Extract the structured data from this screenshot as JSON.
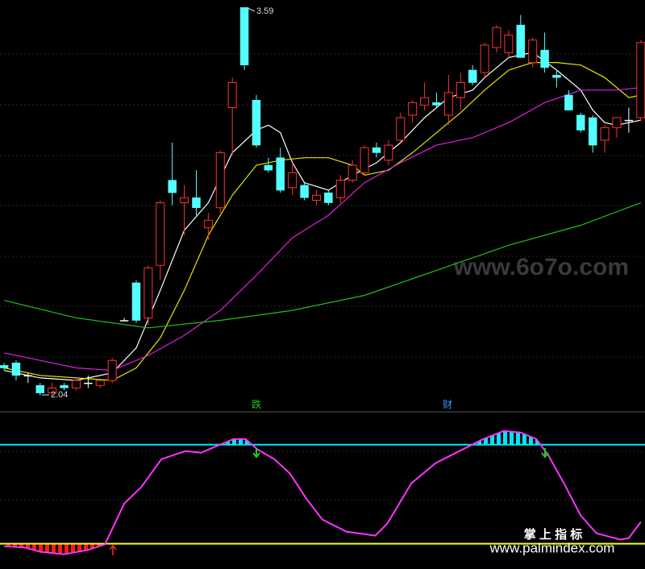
{
  "chart_data": [
    {
      "type": "candlestick",
      "xlim": [
        -0.34,
        53.35
      ],
      "ylim": [
        2.01,
        3.62
      ],
      "up_color": "#ff3232",
      "down_color": "#54ffff",
      "flat_color": "#ffffff",
      "candles": [
        [
          2.16,
          2.17,
          2.14,
          2.15
        ],
        [
          2.17,
          2.18,
          2.1,
          2.12
        ],
        [
          2.12,
          2.13,
          2.09,
          2.12
        ],
        [
          2.08,
          2.09,
          2.04,
          2.05
        ],
        [
          2.05,
          2.09,
          2.04,
          2.07
        ],
        [
          2.08,
          2.09,
          2.06,
          2.07
        ],
        [
          2.07,
          2.11,
          2.06,
          2.1
        ],
        [
          2.09,
          2.12,
          2.07,
          2.09
        ],
        [
          2.08,
          2.1,
          2.07,
          2.1
        ],
        [
          2.1,
          2.19,
          2.09,
          2.18
        ],
        [
          2.34,
          2.35,
          2.34,
          2.34
        ],
        [
          2.49,
          2.5,
          2.33,
          2.34
        ],
        [
          2.35,
          2.56,
          2.32,
          2.55
        ],
        [
          2.56,
          2.82,
          2.5,
          2.81
        ],
        [
          2.9,
          3.05,
          2.8,
          2.85
        ],
        [
          2.81,
          2.88,
          2.68,
          2.83
        ],
        [
          2.83,
          2.94,
          2.76,
          2.79
        ],
        [
          2.71,
          2.77,
          2.66,
          2.74
        ],
        [
          2.79,
          3.02,
          2.77,
          3.01
        ],
        [
          3.19,
          3.31,
          3.0,
          3.29
        ],
        [
          3.59,
          3.59,
          3.34,
          3.36
        ],
        [
          3.22,
          3.24,
          3.03,
          3.04
        ],
        [
          2.96,
          2.99,
          2.93,
          2.94
        ],
        [
          2.99,
          3.03,
          2.85,
          2.86
        ],
        [
          2.87,
          2.97,
          2.84,
          2.93
        ],
        [
          2.88,
          2.89,
          2.82,
          2.83
        ],
        [
          2.82,
          2.86,
          2.8,
          2.84
        ],
        [
          2.85,
          2.86,
          2.8,
          2.81
        ],
        [
          2.83,
          2.92,
          2.81,
          2.9
        ],
        [
          2.9,
          2.98,
          2.89,
          2.96
        ],
        [
          2.93,
          3.04,
          2.92,
          3.03
        ],
        [
          3.03,
          3.05,
          2.99,
          3.01
        ],
        [
          2.98,
          3.06,
          2.96,
          3.04
        ],
        [
          3.06,
          3.17,
          3.05,
          3.15
        ],
        [
          3.16,
          3.22,
          3.13,
          3.21
        ],
        [
          3.2,
          3.29,
          3.18,
          3.23
        ],
        [
          3.21,
          3.25,
          3.19,
          3.2
        ],
        [
          3.16,
          3.32,
          3.12,
          3.25
        ],
        [
          3.23,
          3.33,
          3.18,
          3.29
        ],
        [
          3.34,
          3.36,
          3.28,
          3.29
        ],
        [
          3.33,
          3.45,
          3.31,
          3.44
        ],
        [
          3.43,
          3.52,
          3.41,
          3.51
        ],
        [
          3.41,
          3.5,
          3.39,
          3.48
        ],
        [
          3.52,
          3.56,
          3.39,
          3.39
        ],
        [
          3.37,
          3.47,
          3.35,
          3.46
        ],
        [
          3.42,
          3.49,
          3.33,
          3.35
        ],
        [
          3.32,
          3.34,
          3.27,
          3.31
        ],
        [
          3.24,
          3.26,
          3.18,
          3.18
        ],
        [
          3.16,
          3.17,
          3.09,
          3.1
        ],
        [
          3.15,
          3.16,
          3.01,
          3.04
        ],
        [
          3.06,
          3.12,
          3.01,
          3.11
        ],
        [
          3.11,
          3.15,
          3.07,
          3.15
        ],
        [
          3.14,
          3.19,
          3.09,
          3.14
        ],
        [
          3.15,
          3.46,
          3.14,
          3.45
        ]
      ],
      "series": [
        {
          "color": "#ffffff",
          "x": [
            0,
            3,
            6,
            9,
            11,
            13,
            15,
            17,
            19,
            21,
            22,
            23,
            24,
            25,
            27,
            29,
            31,
            33,
            35,
            37,
            39,
            40,
            42,
            44,
            46,
            48,
            49,
            50,
            51,
            53
          ],
          "values": [
            2.14,
            2.11,
            2.1,
            2.13,
            2.23,
            2.46,
            2.7,
            2.81,
            3.01,
            3.1,
            3.12,
            3.09,
            2.97,
            2.89,
            2.86,
            2.92,
            2.97,
            3.05,
            3.15,
            3.23,
            3.26,
            3.31,
            3.39,
            3.41,
            3.34,
            3.26,
            3.18,
            3.13,
            3.12,
            3.14
          ]
        },
        {
          "color": "#e6e600",
          "x": [
            0,
            3,
            6,
            9,
            11,
            13,
            15,
            17,
            19,
            21,
            23,
            25,
            27,
            29,
            30,
            32,
            34,
            36,
            38,
            40,
            42,
            44,
            46,
            48,
            50,
            52,
            53
          ],
          "values": [
            2.15,
            2.12,
            2.11,
            2.1,
            2.15,
            2.27,
            2.46,
            2.68,
            2.84,
            2.96,
            2.98,
            2.99,
            2.99,
            2.96,
            2.92,
            2.94,
            3.01,
            3.09,
            3.17,
            3.26,
            3.34,
            3.37,
            3.37,
            3.36,
            3.31,
            3.23,
            3.24
          ]
        },
        {
          "color": "#e020e0",
          "x": [
            0,
            3,
            6,
            9,
            12,
            15,
            18,
            21,
            24,
            27,
            30,
            33,
            36,
            39,
            42,
            45,
            48,
            51,
            53
          ],
          "values": [
            2.21,
            2.18,
            2.15,
            2.14,
            2.2,
            2.28,
            2.38,
            2.52,
            2.67,
            2.76,
            2.89,
            2.97,
            3.04,
            3.07,
            3.13,
            3.21,
            3.26,
            3.26,
            3.27
          ]
        },
        {
          "color": "#20c020",
          "x": [
            0,
            6,
            12,
            18,
            24,
            30,
            36,
            42,
            48,
            53
          ],
          "values": [
            2.42,
            2.35,
            2.31,
            2.34,
            2.38,
            2.44,
            2.54,
            2.64,
            2.72,
            2.81
          ]
        }
      ],
      "annotations": [
        "跌",
        "财"
      ]
    },
    {
      "type": "oscillator",
      "xlim": [
        -0.34,
        53.35
      ],
      "ylim": [
        -10,
        100
      ],
      "color": "#ff33ff",
      "x": [
        0,
        1.7,
        3,
        5,
        7,
        8.4,
        10,
        11.4,
        13.1,
        15.1,
        16.4,
        17.8,
        19.1,
        20.1,
        21.1,
        22.5,
        23.8,
        25.2,
        26.5,
        28.5,
        30.9,
        31.9,
        33.9,
        35.9,
        37.9,
        39.9,
        41.6,
        43,
        44.3,
        45.3,
        46.6,
        48,
        49.3,
        51.3,
        52,
        53
      ],
      "values": [
        -2,
        -3,
        -6.5,
        -8.5,
        -5,
        -0.5,
        32.5,
        45.5,
        68.3,
        74.8,
        73.5,
        79.3,
        84.6,
        84.6,
        76.1,
        68.3,
        56.6,
        35.8,
        19.5,
        9.8,
        6.5,
        16.3,
        48.8,
        65,
        74.8,
        84.6,
        91.1,
        89.8,
        84.6,
        71.5,
        48.8,
        22.8,
        8.5,
        3.3,
        4.6,
        17.6
      ],
      "levels": [
        {
          "value": 80,
          "color": "#00e5ff",
          "side": "above"
        },
        {
          "value": 0,
          "color": "#ffff00",
          "side": "below",
          "fill": "#ff1a1a"
        }
      ]
    }
  ],
  "watermarks": {
    "site": "www.6o7o.com",
    "brand": "掌 上 指 标",
    "url": "www.palmindex.com"
  }
}
